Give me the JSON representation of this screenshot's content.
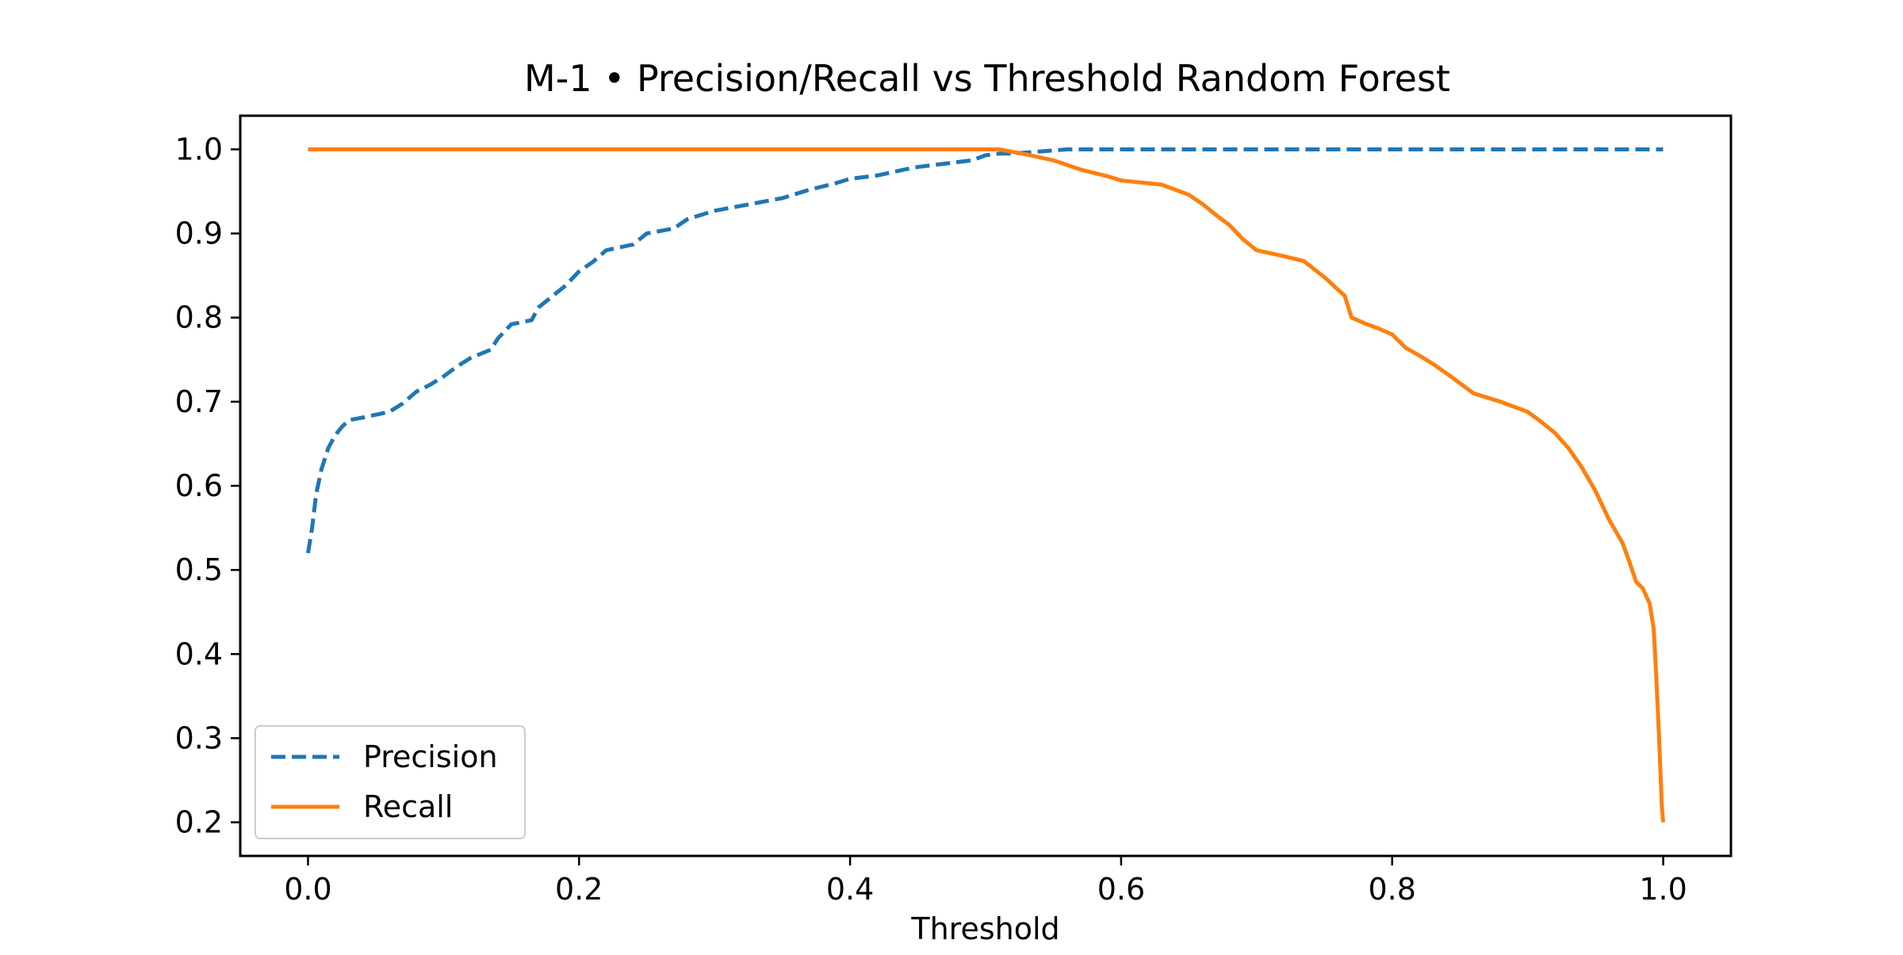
{
  "chart_data": {
    "type": "line",
    "title": "M-1 • Precision/Recall vs Threshold Random Forest",
    "xlabel": "Threshold",
    "ylabel": "",
    "xlim": [
      -0.05,
      1.05
    ],
    "ylim": [
      0.16,
      1.04
    ],
    "x_ticks": [
      0.0,
      0.2,
      0.4,
      0.6,
      0.8,
      1.0
    ],
    "x_tick_labels": [
      "0.0",
      "0.2",
      "0.4",
      "0.6",
      "0.8",
      "1.0"
    ],
    "y_ticks": [
      0.2,
      0.3,
      0.4,
      0.5,
      0.6,
      0.7,
      0.8,
      0.9,
      1.0
    ],
    "y_tick_labels": [
      "0.2",
      "0.3",
      "0.4",
      "0.5",
      "0.6",
      "0.7",
      "0.8",
      "0.9",
      "1.0"
    ],
    "grid": false,
    "legend_position": "lower-left",
    "series": [
      {
        "name": "Precision",
        "color": "#1f77b4",
        "line_style": "dashed",
        "x": [
          0.0,
          0.003,
          0.006,
          0.01,
          0.015,
          0.02,
          0.025,
          0.03,
          0.04,
          0.06,
          0.07,
          0.08,
          0.09,
          0.1,
          0.11,
          0.12,
          0.135,
          0.14,
          0.15,
          0.165,
          0.17,
          0.19,
          0.2,
          0.21,
          0.22,
          0.24,
          0.25,
          0.27,
          0.28,
          0.3,
          0.32,
          0.35,
          0.37,
          0.39,
          0.4,
          0.42,
          0.44,
          0.45,
          0.47,
          0.49,
          0.5,
          0.51,
          0.52,
          0.56,
          0.6,
          0.7,
          0.8,
          0.9,
          1.0
        ],
        "y": [
          0.52,
          0.55,
          0.59,
          0.62,
          0.645,
          0.66,
          0.67,
          0.678,
          0.681,
          0.688,
          0.698,
          0.712,
          0.72,
          0.73,
          0.742,
          0.752,
          0.762,
          0.775,
          0.792,
          0.797,
          0.812,
          0.838,
          0.855,
          0.866,
          0.88,
          0.887,
          0.9,
          0.906,
          0.917,
          0.927,
          0.933,
          0.942,
          0.952,
          0.96,
          0.965,
          0.969,
          0.976,
          0.979,
          0.983,
          0.987,
          0.993,
          0.995,
          0.995,
          1.0,
          1.0,
          1.0,
          1.0,
          1.0,
          1.0
        ]
      },
      {
        "name": "Recall",
        "color": "#ff7f0e",
        "line_style": "solid",
        "x": [
          0.0,
          0.1,
          0.2,
          0.3,
          0.4,
          0.5,
          0.51,
          0.53,
          0.55,
          0.57,
          0.59,
          0.6,
          0.63,
          0.65,
          0.66,
          0.67,
          0.68,
          0.69,
          0.7,
          0.72,
          0.735,
          0.75,
          0.765,
          0.77,
          0.78,
          0.79,
          0.8,
          0.81,
          0.82,
          0.83,
          0.845,
          0.86,
          0.88,
          0.9,
          0.91,
          0.92,
          0.93,
          0.94,
          0.95,
          0.96,
          0.97,
          0.975,
          0.98,
          0.985,
          0.99,
          0.993,
          0.995,
          0.997,
          0.999,
          1.0
        ],
        "y": [
          1.0,
          1.0,
          1.0,
          1.0,
          1.0,
          1.0,
          1.0,
          0.994,
          0.987,
          0.976,
          0.968,
          0.963,
          0.958,
          0.946,
          0.935,
          0.922,
          0.91,
          0.893,
          0.88,
          0.873,
          0.867,
          0.848,
          0.826,
          0.8,
          0.793,
          0.787,
          0.78,
          0.764,
          0.755,
          0.745,
          0.728,
          0.71,
          0.7,
          0.688,
          0.676,
          0.663,
          0.645,
          0.622,
          0.594,
          0.56,
          0.532,
          0.51,
          0.486,
          0.478,
          0.46,
          0.43,
          0.37,
          0.3,
          0.22,
          0.2
        ]
      }
    ]
  }
}
